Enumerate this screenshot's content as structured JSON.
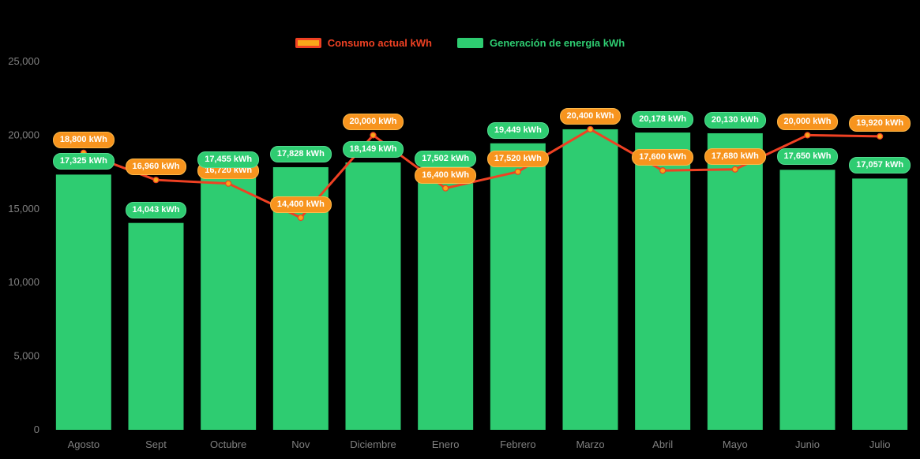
{
  "legend": {
    "items": [
      {
        "label": "Consumo actual kWh"
      },
      {
        "label": "Generación de energía kWh"
      }
    ]
  },
  "colors": {
    "background": "#000000",
    "generation_bar": "#2ecc71",
    "generation_badge": "#2ecc71",
    "generation_badge_border": "#55dd92",
    "consumption_line": "#ef4123",
    "consumption_point": "#f9a61a",
    "consumption_badge": "#f7941e",
    "consumption_badge_border": "#fdb94a",
    "axis_text": "#808080"
  },
  "chart_data": {
    "type": "bar",
    "title": "",
    "categories": [
      "Agosto",
      "Sept",
      "Octubre",
      "Nov",
      "Diciembre",
      "Enero",
      "Febrero",
      "Marzo",
      "Abril",
      "Mayo",
      "Junio",
      "Julio"
    ],
    "series": [
      {
        "name": "Generación de energía kWh",
        "type": "bar",
        "color": "#2ecc71",
        "values": [
          17325,
          14043,
          17455,
          17828,
          18149,
          17502,
          19449,
          20400,
          20178,
          20130,
          17650,
          17057
        ],
        "labels": [
          "17,325 kWh",
          "14,043 kWh",
          "17,455 kWh",
          "17,828 kWh",
          "18,149 kWh",
          "17,502 kWh",
          "19,449 kWh",
          "",
          "20,178 kWh",
          "20,130 kWh",
          "17,650 kWh",
          "17,057 kWh"
        ]
      },
      {
        "name": "Consumo actual kWh",
        "type": "line",
        "color": "#ef4123",
        "values": [
          18800,
          16960,
          16720,
          14400,
          20000,
          16400,
          17520,
          20400,
          17600,
          17680,
          20000,
          19920
        ],
        "labels": [
          "18,800 kWh",
          "16,960 kWh",
          "16,720 kWh",
          "14,400 kWh",
          "20,000 kWh",
          "16,400 kWh",
          "17,520 kWh",
          "20,400 kWh",
          "17,600 kWh",
          "17,680 kWh",
          "20,000 kWh",
          "19,920 kWh"
        ]
      }
    ],
    "ylim": [
      0,
      25000
    ],
    "yticks": [
      0,
      5000,
      10000,
      15000,
      20000,
      25000
    ],
    "ytick_labels": [
      "0",
      "5,000",
      "10,000",
      "15,000",
      "20,000",
      "25,000"
    ],
    "grid": false,
    "legend_position": "top",
    "xlabel": "",
    "ylabel": ""
  }
}
